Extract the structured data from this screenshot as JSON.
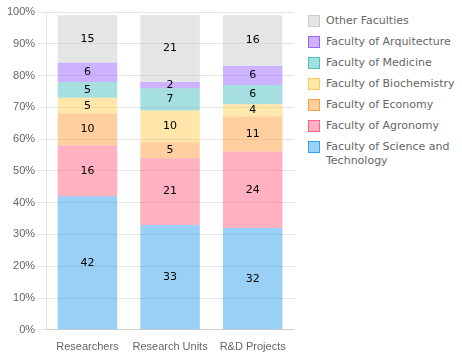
{
  "chart_data": {
    "type": "bar",
    "stacked": true,
    "categories": [
      "Researchers",
      "Research Units",
      "R&D Projects"
    ],
    "series": [
      {
        "name": "Faculty of Science and\nTechnology",
        "values": [
          42,
          33,
          32
        ]
      },
      {
        "name": "Faculty of Agronomy",
        "values": [
          16,
          21,
          24
        ]
      },
      {
        "name": "Faculty of Economy",
        "values": [
          10,
          5,
          11
        ]
      },
      {
        "name": "Faculty of Biochemistry",
        "values": [
          5,
          10,
          4
        ]
      },
      {
        "name": "Faculty of Medicine",
        "values": [
          5,
          7,
          6
        ]
      },
      {
        "name": "Faculty of Arquitecture",
        "values": [
          6,
          2,
          6
        ]
      },
      {
        "name": "Other Faculties",
        "values": [
          15,
          21,
          16
        ]
      }
    ],
    "ylim": [
      0,
      100
    ],
    "yticks": [
      {
        "value": 0,
        "label": "0%"
      },
      {
        "value": 10,
        "label": "10%"
      },
      {
        "value": 20,
        "label": "20%"
      },
      {
        "value": 30,
        "label": "30%"
      },
      {
        "value": 40,
        "label": "40%"
      },
      {
        "value": 50,
        "label": "50%"
      },
      {
        "value": 60,
        "label": "60%"
      },
      {
        "value": 70,
        "label": "70%"
      },
      {
        "value": 80,
        "label": "80%"
      },
      {
        "value": 90,
        "label": "90%"
      },
      {
        "value": 100,
        "label": "100%"
      }
    ],
    "grid": true,
    "legend": "right",
    "data_labels": true
  }
}
